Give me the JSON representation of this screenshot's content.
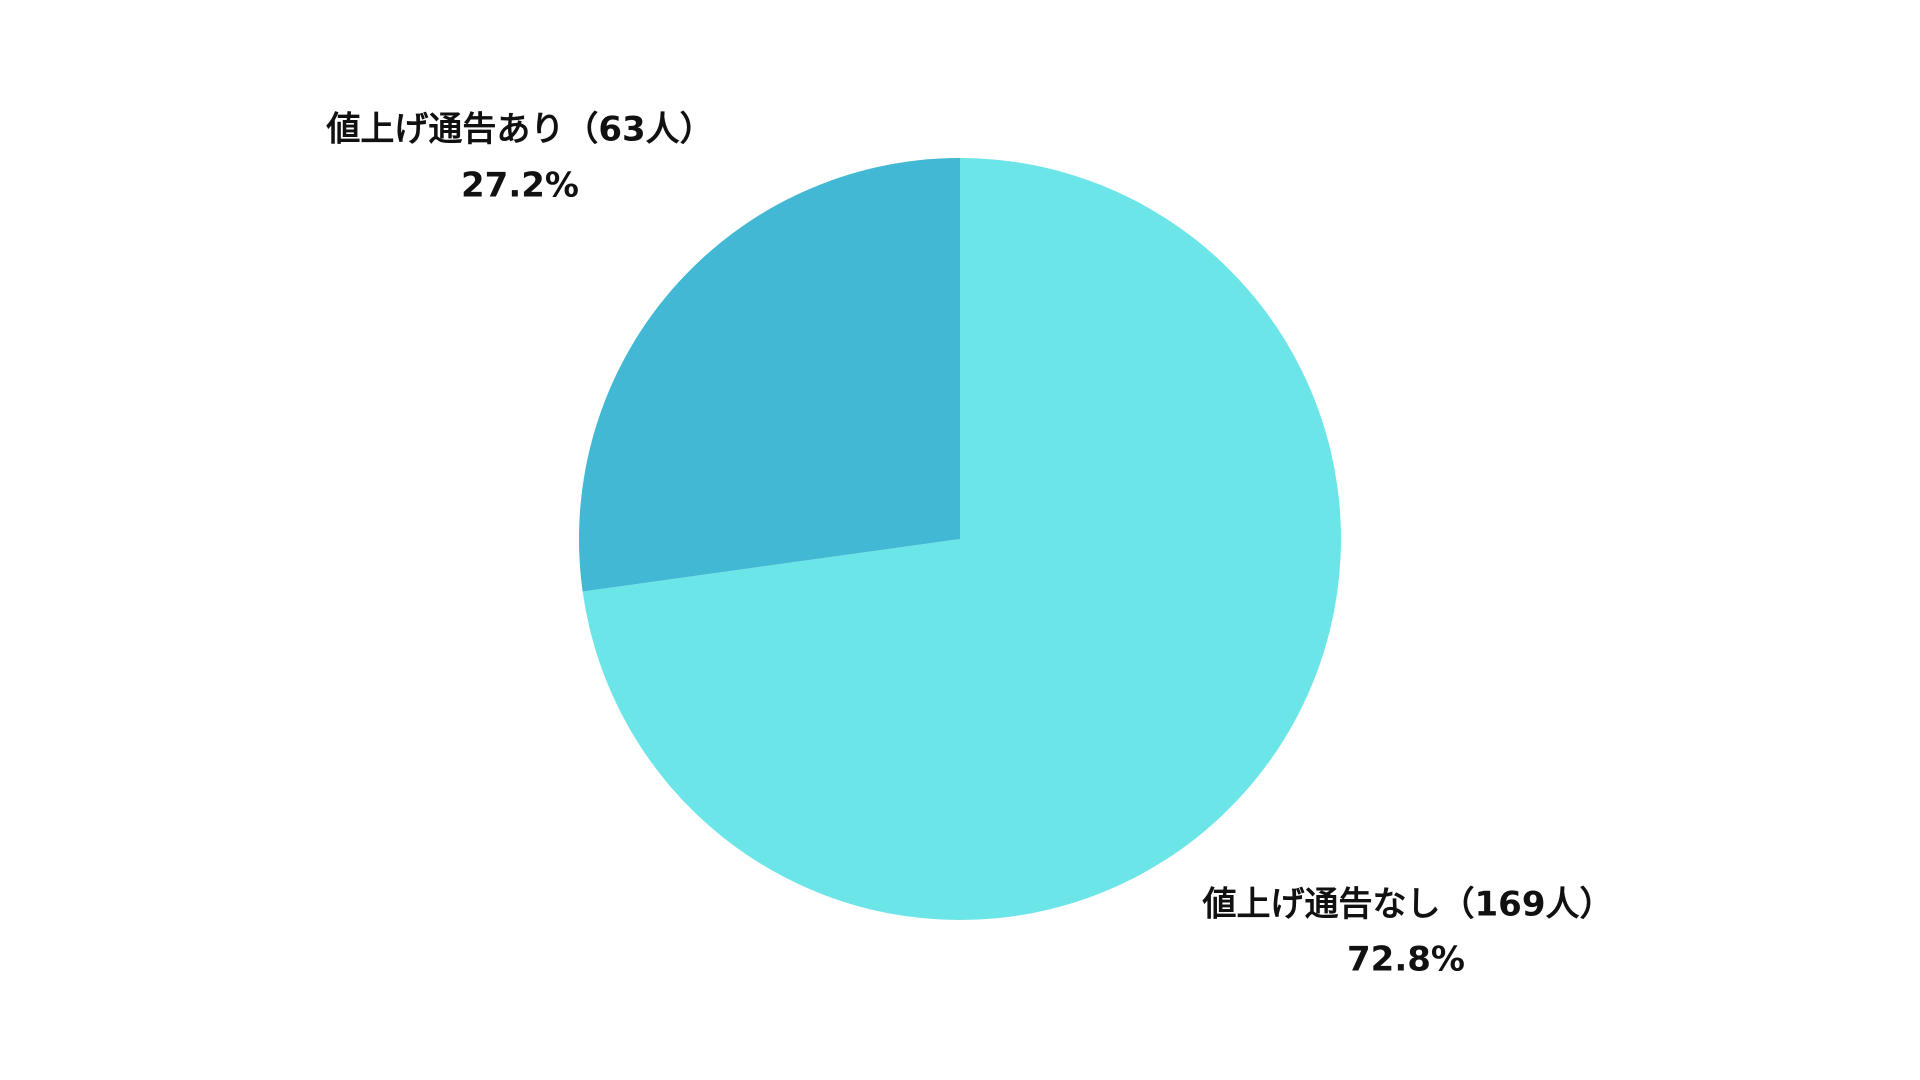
{
  "chart_data": {
    "type": "pie",
    "categories": [
      "値上げ通告なし（169人）",
      "値上げ通告あり（63人）"
    ],
    "values": [
      72.8,
      27.2
    ],
    "value_labels": [
      "72.8%",
      "27.2%"
    ],
    "colors": [
      "#6ce5e8",
      "#42b8d4"
    ]
  }
}
